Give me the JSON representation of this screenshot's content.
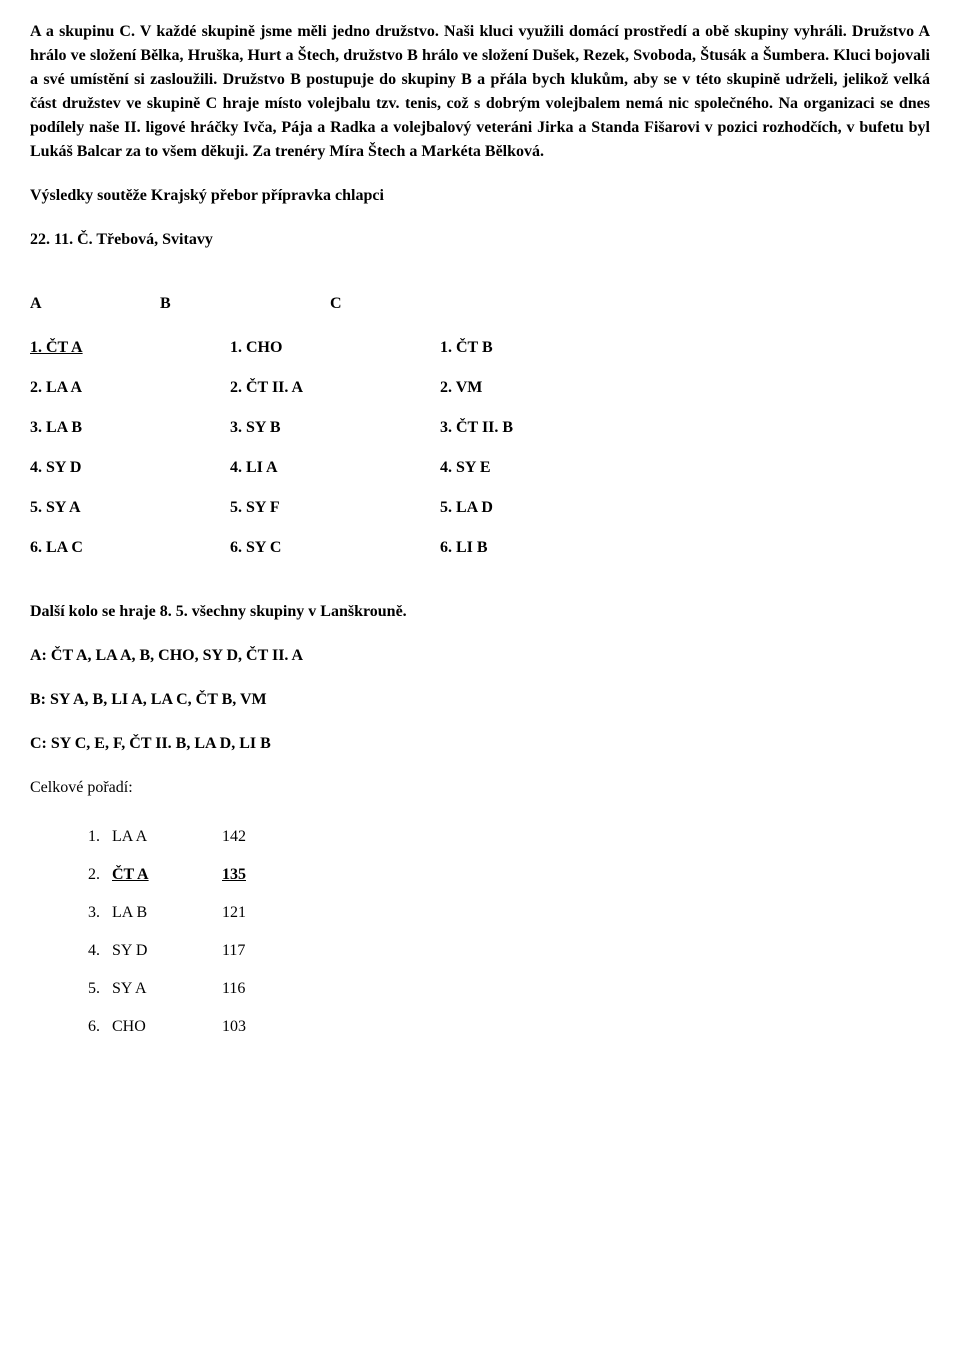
{
  "paragraph": "A a skupinu C. V každé skupině jsme měli jedno družstvo. Naši kluci využili domácí prostředí a obě skupiny vyhráli. Družstvo A hrálo ve složení Bělka, Hruška, Hurt a Štech, družstvo B hrálo ve složení Dušek, Rezek, Svoboda, Štusák a Šumbera. Kluci bojovali a své umístění si zasloužili. Družstvo B postupuje do skupiny B a přála bych klukům, aby se v této skupině udrželi, jelikož velká část družstev ve skupině C hraje místo volejbalu tzv. tenis, což s dobrým volejbalem nemá nic společného. Na organizaci se dnes podílely naše II. ligové hráčky Ivča, Pája a Radka a volejbalový veteráni Jirka a Standa Fišarovi v pozici rozhodčích, v bufetu byl Lukáš Balcar za to všem děkuji. Za trenéry Míra Štech a Markéta Bělková.",
  "sectionTitle": "Výsledky soutěže Krajský přebor přípravka chlapci",
  "subtitle": "22. 11. Č. Třebová, Svitavy",
  "groupsHeader": {
    "a": "A",
    "b": "B",
    "c": "C"
  },
  "groupsRows": [
    {
      "c1": "1. ČT A",
      "c2": "1. CHO",
      "c3": "1. ČT B",
      "underlineC1": true
    },
    {
      "c1": "2. LA A",
      "c2": "2. ČT II. A",
      "c3": "2. VM"
    },
    {
      "c1": "3. LA B",
      "c2": "3. SY B",
      "c3": "3. ČT II. B"
    },
    {
      "c1": "4. SY D",
      "c2": "4. LI A",
      "c3": "4. SY E"
    },
    {
      "c1": "5. SY A",
      "c2": "5. SY F",
      "c3": "5. LA D"
    },
    {
      "c1": "6. LA C",
      "c2": "6. SY C",
      "c3": "6. LI B"
    }
  ],
  "nextRound": "Další kolo se hraje 8. 5. všechny skupiny v Lanškrouně.",
  "groupA": "A: ČT A, LA A, B, CHO, SY D, ČT II. A",
  "groupB": "B: SY A, B, LI A, LA C, ČT B, VM",
  "groupC": "C: SY C, E, F, ČT II. B, LA D, LI B",
  "overallLabel": "Celkové pořadí:",
  "ranking": [
    {
      "n": "1.",
      "team": "LA A",
      "pts": "142"
    },
    {
      "n": "2.",
      "team": "ČT A",
      "pts": "135",
      "bold": true
    },
    {
      "n": "3.",
      "team": "LA B",
      "pts": "121"
    },
    {
      "n": "4.",
      "team": "SY D",
      "pts": "117"
    },
    {
      "n": "5.",
      "team": "SY A",
      "pts": "116"
    },
    {
      "n": "6.",
      "team": "CHO",
      "pts": "103"
    }
  ]
}
